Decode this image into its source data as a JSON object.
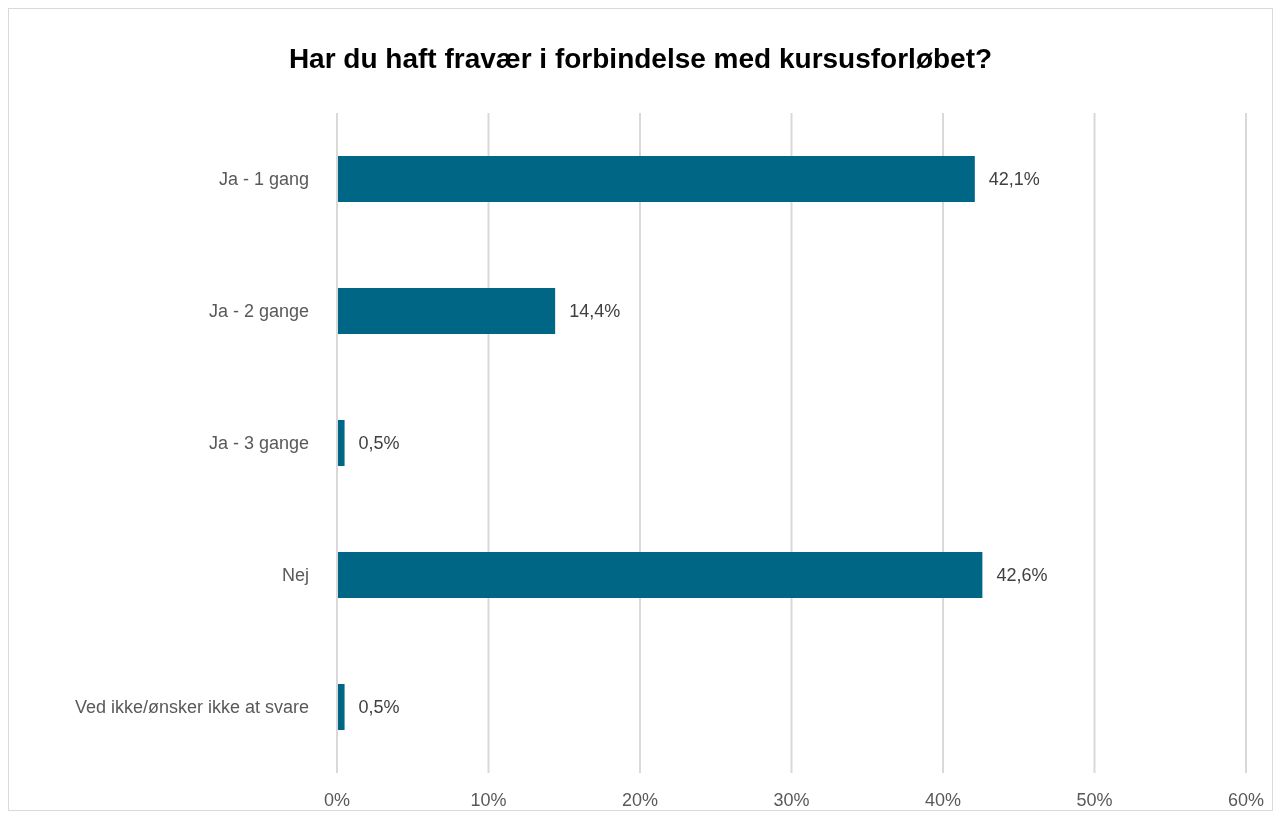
{
  "chart_data": {
    "type": "bar",
    "orientation": "horizontal",
    "title": "Har du haft fravær i forbindelse med kursusforløbet?",
    "categories": [
      "Ja - 1 gang",
      "Ja - 2 gange",
      "Ja - 3 gange",
      "Nej",
      "Ved ikke/ønsker ikke at svare"
    ],
    "values": [
      42.1,
      14.4,
      0.5,
      42.6,
      0.5
    ],
    "value_labels": [
      "42,1%",
      "14,4%",
      "0,5%",
      "42,6%",
      "0,5%"
    ],
    "color": "#006685",
    "xlim": [
      0,
      60
    ],
    "xticks": [
      {
        "value": 0,
        "label": "0%"
      },
      {
        "value": 10,
        "label": "10%"
      },
      {
        "value": 20,
        "label": "20%"
      },
      {
        "value": 30,
        "label": "30%"
      },
      {
        "value": 40,
        "label": "40%"
      },
      {
        "value": 50,
        "label": "50%"
      },
      {
        "value": 60,
        "label": "60%"
      }
    ],
    "grid": "x"
  }
}
